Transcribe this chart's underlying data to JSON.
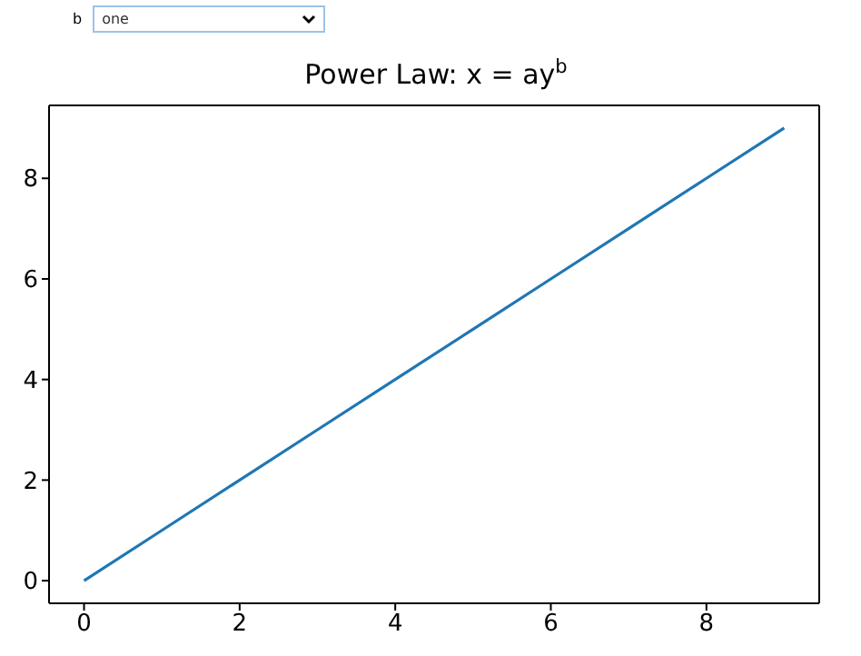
{
  "chart_data": {
    "type": "line",
    "title": "Power Law: x = ay$^{b}$",
    "annotations": [
      "b",
      "one"
    ],
    "x": [
      0,
      1,
      2,
      3,
      4,
      5,
      6,
      7,
      8,
      9
    ],
    "series": [
      {
        "color": "#1f77b4",
        "values": [
          0,
          1,
          2,
          3,
          4,
          5,
          6,
          7,
          8,
          9
        ]
      }
    ],
    "xlim": [
      -0.45,
      9.45
    ],
    "xticks": [
      0,
      2,
      4,
      6,
      8
    ],
    "ylim": [
      -0.45,
      9.45
    ],
    "yticks": [
      0,
      2,
      4,
      6,
      8
    ],
    "grid": false,
    "legend": false,
    "marker": "none",
    "line_style": "solid"
  }
}
